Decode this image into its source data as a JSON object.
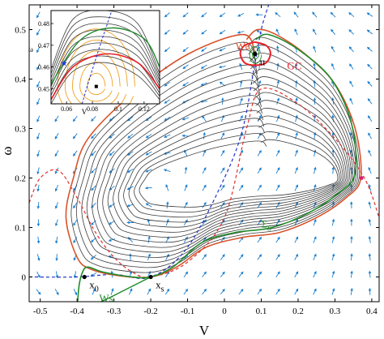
{
  "chart_data": {
    "type": "phase-portrait",
    "xlabel": "V",
    "ylabel": "ω",
    "xlim": [
      -0.53,
      0.42
    ],
    "ylim": [
      -0.05,
      0.55
    ],
    "xticks": [
      {
        "v": -0.5,
        "label": "-0.5"
      },
      {
        "v": -0.4,
        "label": "-0.4"
      },
      {
        "v": -0.3,
        "label": "-0.3"
      },
      {
        "v": -0.2,
        "label": "-0.2"
      },
      {
        "v": -0.1,
        "label": "-0.1"
      },
      {
        "v": 0.0,
        "label": "0"
      },
      {
        "v": 0.1,
        "label": "0.1"
      },
      {
        "v": 0.2,
        "label": "0.2"
      },
      {
        "v": 0.3,
        "label": "0.3"
      },
      {
        "v": 0.4,
        "label": "0.4"
      }
    ],
    "yticks": [
      {
        "v": 0.0,
        "label": "0"
      },
      {
        "v": 0.1,
        "label": "0.1"
      },
      {
        "v": 0.2,
        "label": "0.2"
      },
      {
        "v": 0.3,
        "label": "0.3"
      },
      {
        "v": 0.4,
        "label": "0.4"
      },
      {
        "v": 0.5,
        "label": "0.5"
      }
    ],
    "grid": false,
    "colors": {
      "trajectory": "#3c3c3c",
      "unstable_manifold": "#d9532b",
      "limit_cycle": "#e8202a",
      "stable_manifold": "#1f8a2a",
      "v_nullcline": "#e03030",
      "w_nullcline": "#2233cc",
      "vector_field": "#1a7fd0",
      "inset_orbits": "#f0a020"
    },
    "fixed_points": [
      {
        "label": "x",
        "subscript": "0",
        "v": -0.38,
        "w": 0.0
      },
      {
        "label": "x",
        "subscript": "s",
        "v": -0.2,
        "w": 0.0
      },
      {
        "label": "u",
        "subscript": "",
        "v": 0.083,
        "w": 0.451
      }
    ],
    "annotations": [
      {
        "text": "Wu",
        "v": 0.03,
        "w": 0.46
      },
      {
        "text": "GC",
        "v": 0.17,
        "w": 0.42
      },
      {
        "text": "Σ",
        "subscript": "S",
        "v": 0.1,
        "w": 0.1
      },
      {
        "text": "Ws",
        "v": -0.34,
        "w": -0.05
      }
    ],
    "v_nullcline": [
      [
        -0.53,
        0.15
      ],
      [
        -0.5,
        0.2
      ],
      [
        -0.45,
        0.215
      ],
      [
        -0.4,
        0.16
      ],
      [
        -0.35,
        0.09
      ],
      [
        -0.3,
        0.04
      ],
      [
        -0.25,
        0.01
      ],
      [
        -0.2,
        0.0
      ],
      [
        -0.1,
        0.03
      ],
      [
        0.0,
        0.12
      ],
      [
        0.06,
        0.3
      ],
      [
        0.1,
        0.38
      ],
      [
        0.2,
        0.35
      ],
      [
        0.3,
        0.28
      ],
      [
        0.38,
        0.2
      ],
      [
        0.42,
        0.12
      ]
    ],
    "w_nullcline": [
      [
        -0.53,
        0.0
      ],
      [
        -0.4,
        0.0
      ],
      [
        -0.3,
        0.005
      ],
      [
        -0.2,
        0.0
      ],
      [
        -0.1,
        0.06
      ],
      [
        0.0,
        0.2
      ],
      [
        0.05,
        0.3
      ],
      [
        0.08,
        0.42
      ],
      [
        0.1,
        0.5
      ],
      [
        0.12,
        0.55
      ]
    ],
    "unstable_manifold": [
      [
        0.083,
        0.451
      ],
      [
        0.05,
        0.49
      ],
      [
        -0.1,
        0.45
      ],
      [
        -0.25,
        0.37
      ],
      [
        -0.37,
        0.28
      ],
      [
        -0.41,
        0.2
      ],
      [
        -0.43,
        0.12
      ],
      [
        -0.4,
        0.04
      ],
      [
        -0.36,
        0.015
      ],
      [
        -0.28,
        0.002
      ],
      [
        -0.2,
        0.0
      ],
      [
        -0.13,
        0.02
      ],
      [
        -0.05,
        0.06
      ],
      [
        0.05,
        0.08
      ],
      [
        0.15,
        0.09
      ],
      [
        0.25,
        0.12
      ],
      [
        0.33,
        0.16
      ],
      [
        0.37,
        0.2
      ],
      [
        0.355,
        0.3
      ],
      [
        0.3,
        0.39
      ],
      [
        0.22,
        0.45
      ],
      [
        0.14,
        0.49
      ],
      [
        0.09,
        0.5
      ],
      [
        0.06,
        0.48
      ]
    ],
    "limit_cycle": [
      [
        0.083,
        0.475
      ],
      [
        0.113,
        0.468
      ],
      [
        0.125,
        0.452
      ],
      [
        0.113,
        0.433
      ],
      [
        0.083,
        0.428
      ],
      [
        0.055,
        0.433
      ],
      [
        0.043,
        0.452
      ],
      [
        0.055,
        0.468
      ],
      [
        0.083,
        0.475
      ]
    ],
    "stable_manifold": [
      [
        -0.4,
        -0.07
      ],
      [
        -0.395,
        -0.02
      ],
      [
        -0.385,
        0.01
      ],
      [
        -0.37,
        0.02
      ],
      [
        -0.33,
        0.01
      ],
      [
        -0.25,
        0.0
      ],
      [
        -0.2,
        0.0
      ],
      [
        -0.14,
        0.02
      ],
      [
        -0.06,
        0.07
      ],
      [
        0.03,
        0.09
      ],
      [
        0.13,
        0.1
      ],
      [
        0.23,
        0.13
      ],
      [
        0.31,
        0.17
      ],
      [
        0.355,
        0.21
      ],
      [
        0.345,
        0.31
      ],
      [
        0.29,
        0.4
      ],
      [
        0.2,
        0.46
      ],
      [
        0.12,
        0.49
      ],
      [
        0.085,
        0.48
      ]
    ],
    "stable_branch": [
      [
        -0.2,
        0.0
      ],
      [
        -0.24,
        -0.015
      ],
      [
        -0.28,
        -0.03
      ],
      [
        -0.32,
        -0.045
      ],
      [
        -0.35,
        -0.055
      ]
    ],
    "inset": {
      "xticks": [
        {
          "v": 0.06,
          "label": "0.06"
        },
        {
          "v": 0.08,
          "label": "0.08"
        },
        {
          "v": 0.1,
          "label": "0.1"
        },
        {
          "v": 0.12,
          "label": "0.12"
        }
      ],
      "yticks": [
        {
          "v": 0.48,
          "label": "0.48"
        },
        {
          "v": 0.47,
          "label": "0.47"
        },
        {
          "v": 0.46,
          "label": "0.46"
        },
        {
          "v": 0.45,
          "label": "0.45"
        }
      ],
      "xlabel": "V",
      "ylabel": "ω",
      "xlim": [
        0.048,
        0.132
      ],
      "ylim": [
        0.443,
        0.486
      ]
    }
  }
}
